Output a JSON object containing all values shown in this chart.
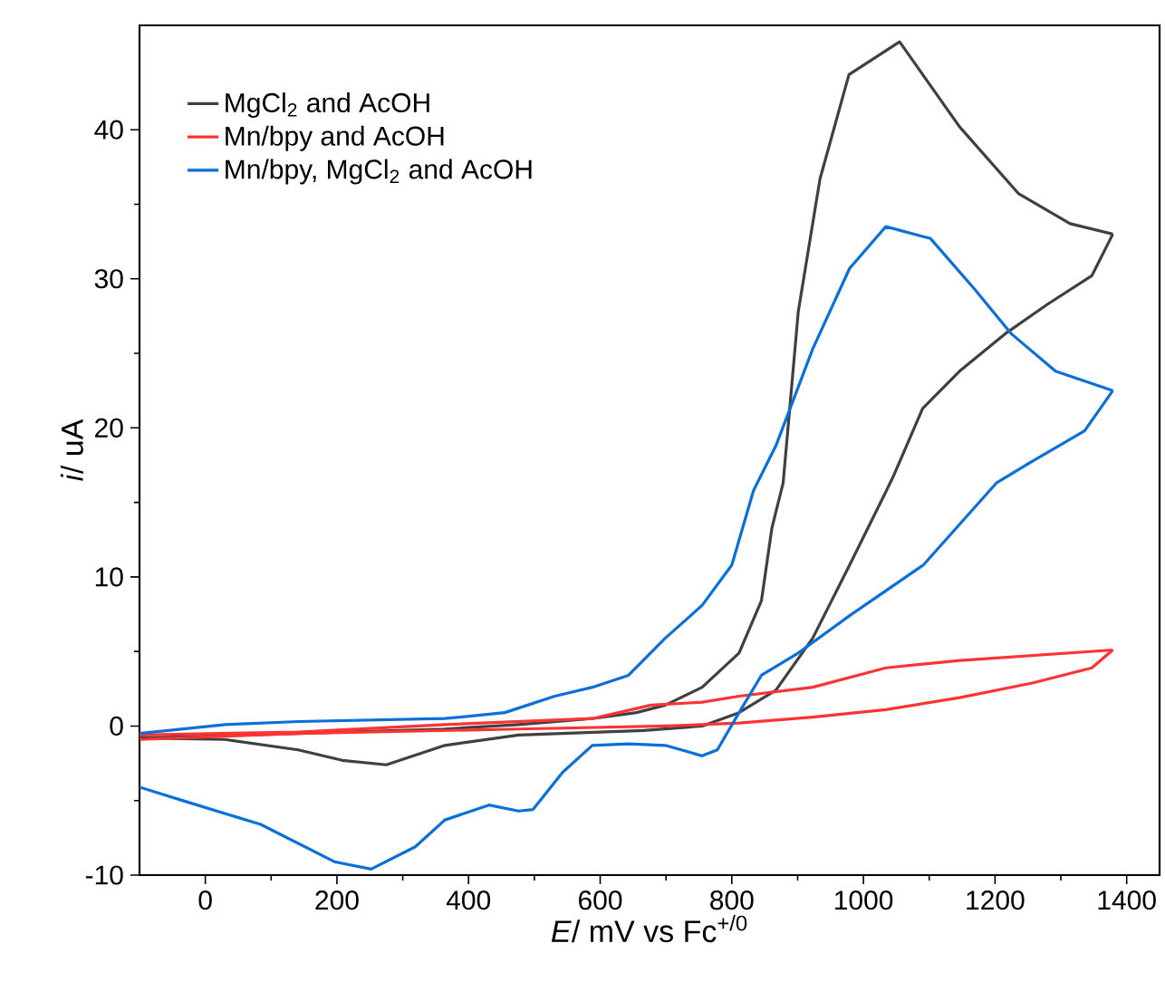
{
  "chart_data": {
    "type": "line",
    "xlabel": "*E*/ mV vs Fc$^{+/0}$",
    "ylabel": "*i*/ uA",
    "xlim": [
      -100,
      1450
    ],
    "ylim": [
      -10,
      47
    ],
    "xticks": [
      0,
      200,
      400,
      600,
      800,
      1000,
      1200,
      1400
    ],
    "yticks": [
      -10,
      0,
      10,
      20,
      30,
      40
    ],
    "grid": false,
    "legend": "top left",
    "line_style": "solid",
    "series": [
      {
        "name": "MgCl$_{2}$ and AcOH",
        "color": "#404040",
        "x": [
          -100,
          141,
          364,
          476,
          588,
          655,
          699,
          755,
          811,
          845,
          861,
          878,
          901,
          934,
          978,
          1055,
          1146,
          1236,
          1314,
          1379
        ],
        "values": [
          -0.8,
          -0.5,
          -0.2,
          0.1,
          0.5,
          0.9,
          1.4,
          2.6,
          4.9,
          8.4,
          13.3,
          16.3,
          27.8,
          36.7,
          43.7,
          45.9,
          40.2,
          35.7,
          33.7,
          33.0
        ]
      },
      {
        "color": "#404040",
        "x": [
          1379,
          1347,
          1280,
          1215,
          1146,
          1090,
          1046,
          1035,
          979,
          923,
          867,
          811,
          755,
          666,
          476,
          364,
          275,
          208,
          141,
          29,
          -100
        ],
        "values": [
          33.0,
          30.2,
          28.3,
          26.3,
          23.8,
          21.3,
          16.8,
          15.8,
          10.8,
          5.9,
          2.4,
          0.9,
          0.0,
          -0.3,
          -0.6,
          -1.3,
          -2.6,
          -2.3,
          -1.6,
          -0.9,
          -0.8
        ]
      },
      {
        "name": "Mn/bpy and AcOH",
        "color": "#ff3333",
        "x": [
          -100,
          141,
          364,
          588,
          677,
          755,
          811,
          923,
          1034,
          1146,
          1379
        ],
        "values": [
          -0.6,
          -0.4,
          0.1,
          0.5,
          1.4,
          1.6,
          2.0,
          2.6,
          3.9,
          4.4,
          5.1
        ]
      },
      {
        "color": "#ff3333",
        "x": [
          1379,
          1347,
          1258,
          1146,
          1034,
          923,
          811,
          699,
          476,
          141,
          -100
        ],
        "values": [
          5.1,
          3.9,
          2.9,
          1.9,
          1.1,
          0.6,
          0.2,
          0.0,
          -0.2,
          -0.5,
          -0.9
        ]
      },
      {
        "name": "Mn/bpy, MgCl$_{2}$ and AcOH",
        "color": "#0a6fd8",
        "x": [
          -100,
          30,
          141,
          364,
          455,
          531,
          588,
          643,
          699,
          755,
          800,
          833,
          867,
          923,
          979,
          1034,
          1102,
          1169,
          1225,
          1292,
          1379
        ],
        "values": [
          -0.5,
          0.1,
          0.3,
          0.5,
          0.9,
          2.0,
          2.6,
          3.4,
          5.9,
          8.1,
          10.8,
          15.8,
          18.8,
          25.3,
          30.7,
          33.5,
          32.7,
          29.3,
          26.3,
          23.8,
          22.5
        ]
      },
      {
        "color": "#0a6fd8",
        "x": [
          1379,
          1336,
          1258,
          1202,
          1091,
          979,
          901,
          845,
          811,
          778,
          755,
          699,
          643,
          588,
          543,
          498,
          476,
          431,
          364,
          319,
          252,
          196,
          84,
          -27,
          -100
        ],
        "values": [
          22.5,
          19.8,
          17.8,
          16.3,
          10.8,
          7.4,
          4.9,
          3.4,
          0.9,
          -1.6,
          -2.0,
          -1.3,
          -1.2,
          -1.3,
          -3.1,
          -5.6,
          -5.7,
          -5.3,
          -6.3,
          -8.1,
          -9.6,
          -9.1,
          -6.6,
          -5.1,
          -4.1
        ]
      }
    ]
  }
}
